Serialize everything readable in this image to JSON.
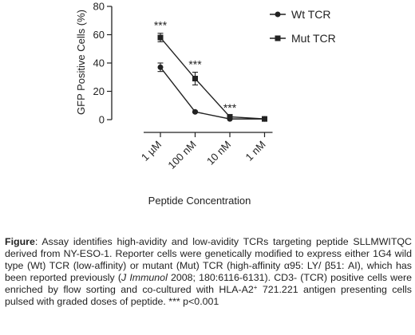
{
  "chart_data": {
    "type": "line",
    "categories": [
      "1 µM",
      "100 nM",
      "10 nM",
      "1 nM"
    ],
    "series": [
      {
        "name": "Wt TCR",
        "marker": "circle",
        "values": [
          37,
          5.5,
          0.5,
          0.5
        ],
        "errors": [
          3,
          0.6,
          0.3,
          0.3
        ]
      },
      {
        "name": "Mut TCR",
        "marker": "square",
        "values": [
          58,
          29,
          2,
          0.5
        ],
        "errors": [
          3,
          4.5,
          0.8,
          0.3
        ]
      }
    ],
    "significance": [
      "***",
      "***",
      "***",
      ""
    ],
    "ylabel": "GFP Positive Cells (%)",
    "xlabel": "Peptide Concentration",
    "ylim": [
      0,
      80
    ],
    "yticks": [
      0,
      20,
      40,
      60,
      80
    ],
    "legend_position": "top-right",
    "grid": false,
    "color": "#222222"
  },
  "caption": {
    "lead": "Figure",
    "p1": ": Assay identifies high-avidity and low-avidity TCRs targeting peptide SLLMWITQC derived from NY-ESO-1. Reporter cells were genetically modified to express either 1G4 wild type (Wt) TCR (low-affinity) or mutant (Mut) TCR (high-affinity α95: LY/ β51: AI), which has been reported previously (",
    "journal": "J Immunol",
    "p2": " 2008; 180:6116-6131). CD3- (TCR) positive cells were enriched by flow sorting and co-cultured with HLA-A2",
    "sup": "+",
    "p3": " 721.221 antigen presenting cells pulsed with graded doses of peptide. *** p<0.001"
  }
}
